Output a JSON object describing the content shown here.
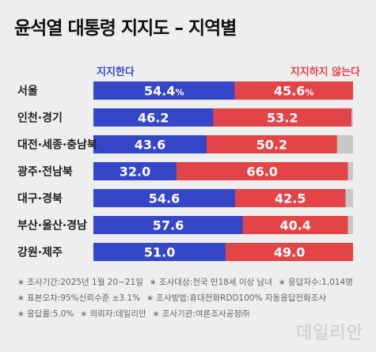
{
  "title": "윤석열 대통령 지지도 – 지역별",
  "legend": {
    "support": "지지한다",
    "nonsupport": "지지하지 않는다"
  },
  "colors": {
    "support": "#3546c9",
    "nonsupport": "#e24448",
    "other": "#c8c8c8",
    "background": "#eeeeee"
  },
  "chart_data": {
    "type": "bar",
    "orientation": "horizontal-stacked",
    "categories": [
      "서울",
      "인천·경기",
      "대전·세종·충남북",
      "광주·전남북",
      "대구·경북",
      "부산·울산·경남",
      "강원·제주"
    ],
    "series": [
      {
        "name": "지지한다",
        "values": [
          54.4,
          46.2,
          43.6,
          32.0,
          54.6,
          57.6,
          51.0
        ],
        "labels": [
          "54.4",
          "46.2",
          "43.6",
          "32.0",
          "54.6",
          "57.6",
          "51.0"
        ]
      },
      {
        "name": "지지하지 않는다",
        "values": [
          45.6,
          53.2,
          50.2,
          66.0,
          42.5,
          40.4,
          49.0
        ],
        "labels": [
          "45.6",
          "53.2",
          "50.2",
          "66.0",
          "42.5",
          "40.4",
          "49.0"
        ]
      }
    ],
    "percent_suffix_rows": [
      0
    ],
    "percent_suffix": "%",
    "xlim": [
      0,
      100
    ]
  },
  "notes": [
    [
      "조사기간:2025년 1월 20~21일",
      "조사대상:전국 만18세 이상 남녀",
      "응답자수:1,014명"
    ],
    [
      "표본오차:95%신뢰수준 ±3.1%",
      "조사방법:휴대전화RDD100% 자동응답전화조사"
    ],
    [
      "응답률:5.0%",
      "의뢰자:데일리안",
      "조사기관:여론조사공정㈜"
    ]
  ],
  "note_bullet": "∗",
  "watermark": "데일리안"
}
